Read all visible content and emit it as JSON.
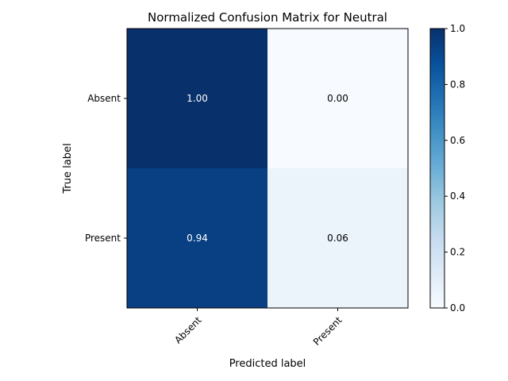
{
  "chart_data": {
    "type": "heatmap",
    "title": "Normalized Confusion Matrix for Neutral",
    "xlabel": "Predicted label",
    "ylabel": "True label",
    "x_categories": [
      "Absent",
      "Present"
    ],
    "y_categories": [
      "Absent",
      "Present"
    ],
    "values": [
      [
        1.0,
        0.0
      ],
      [
        0.94,
        0.06
      ]
    ],
    "cell_labels": [
      [
        "1.00",
        "0.00"
      ],
      [
        "0.94",
        "0.06"
      ]
    ],
    "colormap": "Blues",
    "colorbar": {
      "range": [
        0.0,
        1.0
      ],
      "ticks": [
        0.0,
        0.2,
        0.4,
        0.6,
        0.8,
        1.0
      ],
      "tick_labels": [
        "0.0",
        "0.2",
        "0.4",
        "0.6",
        "0.8",
        "1.0"
      ]
    },
    "grid": false
  }
}
